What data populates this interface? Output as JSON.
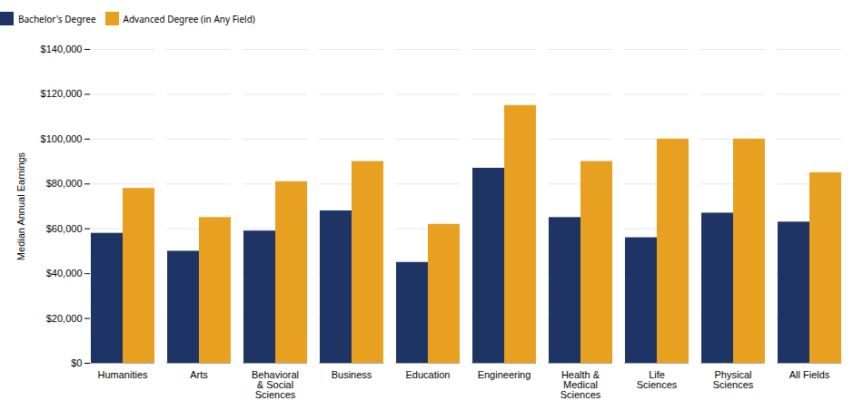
{
  "chart_data": {
    "type": "bar",
    "categories": [
      "Humanities",
      "Arts",
      "Behavioral\n& Social\nSciences",
      "Business",
      "Education",
      "Engineering",
      "Health &\nMedical\nSciences",
      "Life\nSciences",
      "Physical\nSciences",
      "All Fields"
    ],
    "series": [
      {
        "name": "Bachelor's Degree",
        "color": "#1e3464",
        "values": [
          58000,
          50000,
          59000,
          68000,
          45000,
          87000,
          65000,
          56000,
          67000,
          63000
        ]
      },
      {
        "name": "Advanced Degree (in Any Field)",
        "color": "#e8a020",
        "values": [
          78000,
          65000,
          81000,
          90000,
          62000,
          115000,
          90000,
          100000,
          100000,
          85000
        ]
      }
    ],
    "ylabel": "Median Annual Earnings",
    "ylim": [
      0,
      140000
    ],
    "yticks": [
      {
        "value": 0,
        "label": "$0"
      },
      {
        "value": 20000,
        "label": "$20,000"
      },
      {
        "value": 40000,
        "label": "$40,000"
      },
      {
        "value": 60000,
        "label": "$60,000"
      },
      {
        "value": 80000,
        "label": "$80,000"
      },
      {
        "value": 100000,
        "label": "$100,000"
      },
      {
        "value": 120000,
        "label": "$120,000"
      },
      {
        "value": 140000,
        "label": "$140,000"
      }
    ],
    "grid": true,
    "legend": "top"
  }
}
